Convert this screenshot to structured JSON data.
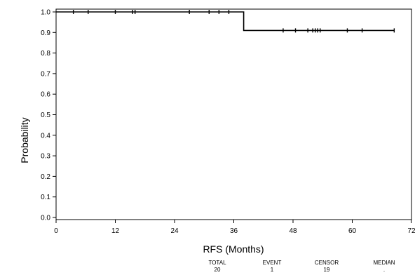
{
  "chart_data": {
    "type": "line",
    "title": "",
    "xlabel": "RFS (Months)",
    "ylabel": "Probability",
    "xlim": [
      0,
      72
    ],
    "ylim": [
      0,
      1.0
    ],
    "x_ticks": [
      0,
      12,
      24,
      36,
      48,
      60,
      72
    ],
    "y_ticks": [
      0.0,
      0.1,
      0.2,
      0.3,
      0.4,
      0.5,
      0.6,
      0.7,
      0.8,
      0.9,
      1.0
    ],
    "y_tick_labels": [
      "0.0",
      "0.1",
      "0.2",
      "0.3",
      "0.4",
      "0.5",
      "0.6",
      "0.7",
      "0.8",
      "0.9",
      "1.0"
    ],
    "grid": false,
    "series": [
      {
        "steps": [
          {
            "x": 0,
            "y": 1.0
          },
          {
            "x": 38,
            "y": 1.0
          },
          {
            "x": 38,
            "y": 0.91
          },
          {
            "x": 68.5,
            "y": 0.91
          }
        ],
        "censor_times": [
          3.5,
          6.5,
          12,
          15.5,
          16,
          27,
          31,
          33,
          35,
          46,
          48.5,
          51,
          52,
          52.5,
          53,
          53.5,
          59,
          62,
          68.5
        ],
        "censor_probabilities": [
          1.0,
          1.0,
          1.0,
          1.0,
          1.0,
          1.0,
          1.0,
          1.0,
          1.0,
          0.91,
          0.91,
          0.91,
          0.91,
          0.91,
          0.91,
          0.91,
          0.91,
          0.91,
          0.91
        ]
      }
    ],
    "summary": {
      "headers": [
        "TOTAL",
        "EVENT",
        "CENSOR",
        "MEDIAN"
      ],
      "values": [
        "20",
        "1",
        "19",
        "."
      ]
    }
  }
}
